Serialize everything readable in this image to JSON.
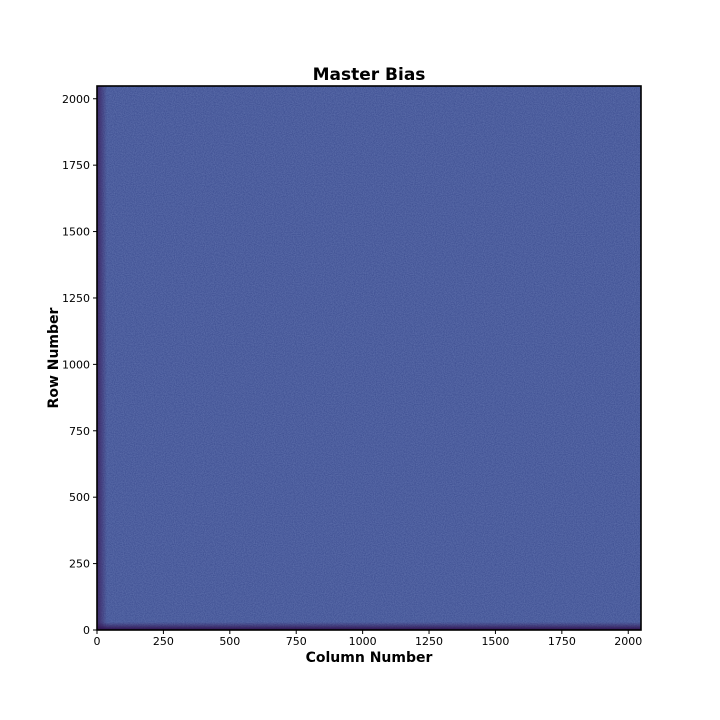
{
  "chart_data": {
    "type": "heatmap",
    "title": "Master Bias",
    "xlabel": "Column Number",
    "ylabel": "Row Number",
    "xlim": [
      0,
      2048
    ],
    "ylim": [
      0,
      2048
    ],
    "x_ticks": [
      "0",
      "250",
      "500",
      "750",
      "1000",
      "1250",
      "1500",
      "1750",
      "2000"
    ],
    "y_ticks": [
      "0",
      "250",
      "500",
      "750",
      "1000",
      "1250",
      "1500",
      "1750",
      "2000"
    ],
    "grid": false,
    "colormap": "viridis",
    "colors": {
      "background_mean": "#3a4b8f",
      "edge_dark": "#3b1f5e"
    }
  }
}
